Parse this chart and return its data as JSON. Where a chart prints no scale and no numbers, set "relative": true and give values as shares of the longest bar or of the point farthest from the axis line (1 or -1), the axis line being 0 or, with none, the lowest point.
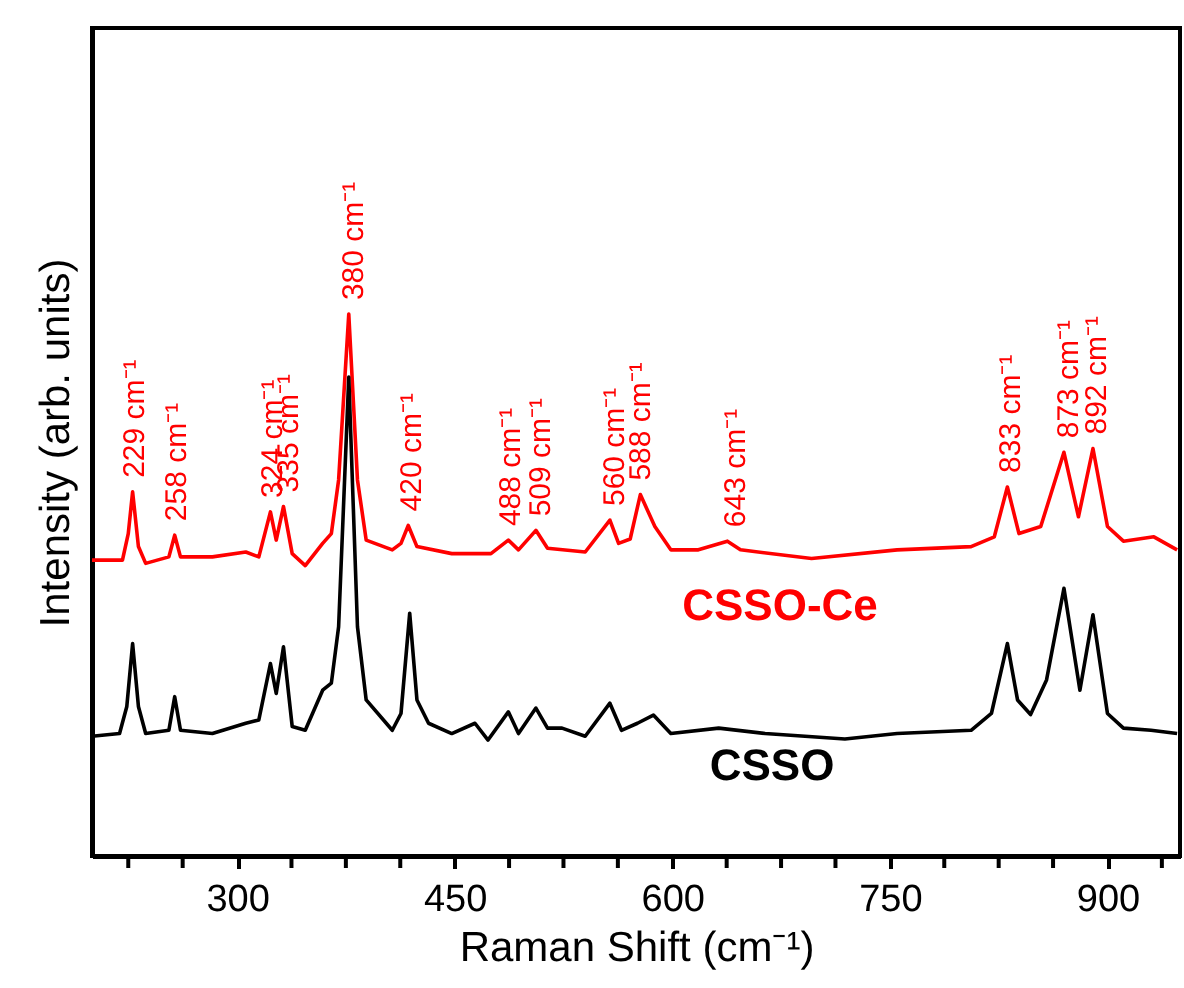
{
  "chart_data": {
    "type": "line",
    "relative": true,
    "xlabel": "Raman Shift (cm⁻¹)",
    "ylabel": "Intensity (arb. units)",
    "xlim": [
      200,
      950
    ],
    "xticks": [
      {
        "value": 225,
        "label": null
      },
      {
        "value": 262.5,
        "label": null
      },
      300,
      {
        "value": 337.5,
        "label": null
      },
      {
        "value": 375,
        "label": null
      },
      {
        "value": 412.5,
        "label": null
      },
      450,
      {
        "value": 487.5,
        "label": null
      },
      {
        "value": 525,
        "label": null
      },
      {
        "value": 562.5,
        "label": null
      },
      600,
      {
        "value": 637.5,
        "label": null
      },
      {
        "value": 675,
        "label": null
      },
      {
        "value": 712.5,
        "label": null
      },
      750,
      {
        "value": 787.5,
        "label": null
      },
      {
        "value": 825,
        "label": null
      },
      {
        "value": 862.5,
        "label": null
      },
      900,
      {
        "value": 937.5,
        "label": null
      }
    ],
    "grid": false,
    "line_style": "solid",
    "series": [
      {
        "name": "CSSO-Ce",
        "color": "#ff0000",
        "x": [
          200,
          221,
          225,
          228,
          232,
          237,
          253,
          257,
          261,
          283,
          306,
          315,
          323,
          327,
          332,
          338,
          347,
          359,
          365,
          370,
          377,
          383,
          389,
          407,
          413,
          418,
          424,
          448,
          475,
          487,
          494,
          506,
          514,
          540,
          557,
          563,
          571,
          578,
          588,
          599,
          618,
          638,
          647,
          696,
          755,
          806,
          822,
          831,
          839,
          854,
          870,
          880,
          890,
          900,
          911,
          932,
          948
        ],
        "values": [
          0.546,
          0.546,
          0.595,
          0.672,
          0.571,
          0.54,
          0.552,
          0.592,
          0.552,
          0.552,
          0.561,
          0.552,
          0.635,
          0.583,
          0.645,
          0.558,
          0.536,
          0.577,
          0.595,
          0.694,
          1.0,
          0.694,
          0.583,
          0.565,
          0.577,
          0.61,
          0.571,
          0.558,
          0.558,
          0.583,
          0.565,
          0.601,
          0.568,
          0.561,
          0.62,
          0.577,
          0.585,
          0.667,
          0.608,
          0.565,
          0.565,
          0.581,
          0.565,
          0.549,
          0.565,
          0.571,
          0.589,
          0.681,
          0.595,
          0.608,
          0.745,
          0.626,
          0.752,
          0.608,
          0.581,
          0.589,
          0.565
        ]
      },
      {
        "name": "CSSO",
        "color": "#000000",
        "x": [
          200,
          219,
          224,
          228,
          232,
          237,
          253,
          257,
          261,
          283,
          306,
          315,
          323,
          327,
          332,
          338,
          347,
          359,
          365,
          370,
          377,
          383,
          389,
          407,
          413,
          419,
          424,
          432,
          448,
          464,
          473,
          487,
          494,
          506,
          514,
          524,
          540,
          557,
          565,
          576,
          587,
          599,
          632,
          664,
          719,
          755,
          806,
          820,
          831,
          838,
          847,
          858,
          870,
          881,
          890,
          900,
          911,
          930,
          948
        ],
        "values": [
          0.221,
          0.226,
          0.276,
          0.392,
          0.276,
          0.226,
          0.232,
          0.294,
          0.232,
          0.226,
          0.245,
          0.251,
          0.355,
          0.3,
          0.386,
          0.239,
          0.232,
          0.306,
          0.319,
          0.423,
          0.884,
          0.423,
          0.288,
          0.232,
          0.263,
          0.448,
          0.288,
          0.245,
          0.226,
          0.245,
          0.214,
          0.266,
          0.226,
          0.273,
          0.236,
          0.236,
          0.221,
          0.282,
          0.232,
          0.245,
          0.26,
          0.226,
          0.236,
          0.226,
          0.216,
          0.226,
          0.232,
          0.263,
          0.392,
          0.288,
          0.261,
          0.325,
          0.494,
          0.306,
          0.445,
          0.263,
          0.236,
          0.232,
          0.226
        ]
      }
    ],
    "annotations": [
      {
        "text": "229 cm⁻¹",
        "x": 229,
        "y": 0.672
      },
      {
        "text": "258 cm⁻¹",
        "x": 258,
        "y": 0.592
      },
      {
        "text": "324 cm⁻¹",
        "x": 324,
        "y": 0.635
      },
      {
        "text": "335 cm⁻¹",
        "x": 335,
        "y": 0.645
      },
      {
        "text": "380 cm⁻¹",
        "x": 380,
        "y": 1.0
      },
      {
        "text": "420 cm⁻¹",
        "x": 420,
        "y": 0.61
      },
      {
        "text": "488 cm⁻¹",
        "x": 488,
        "y": 0.583
      },
      {
        "text": "509 cm⁻¹",
        "x": 509,
        "y": 0.601
      },
      {
        "text": "560 cm⁻¹",
        "x": 560,
        "y": 0.62
      },
      {
        "text": "588 cm⁻¹",
        "x": 578,
        "y": 0.667
      },
      {
        "text": "643 cm⁻¹",
        "x": 643,
        "y": 0.581
      },
      {
        "text": "833 cm⁻¹",
        "x": 833,
        "y": 0.681
      },
      {
        "text": "873 cm⁻¹",
        "x": 873,
        "y": 0.745
      },
      {
        "text": "892 cm⁻¹",
        "x": 892,
        "y": 0.752
      }
    ]
  }
}
